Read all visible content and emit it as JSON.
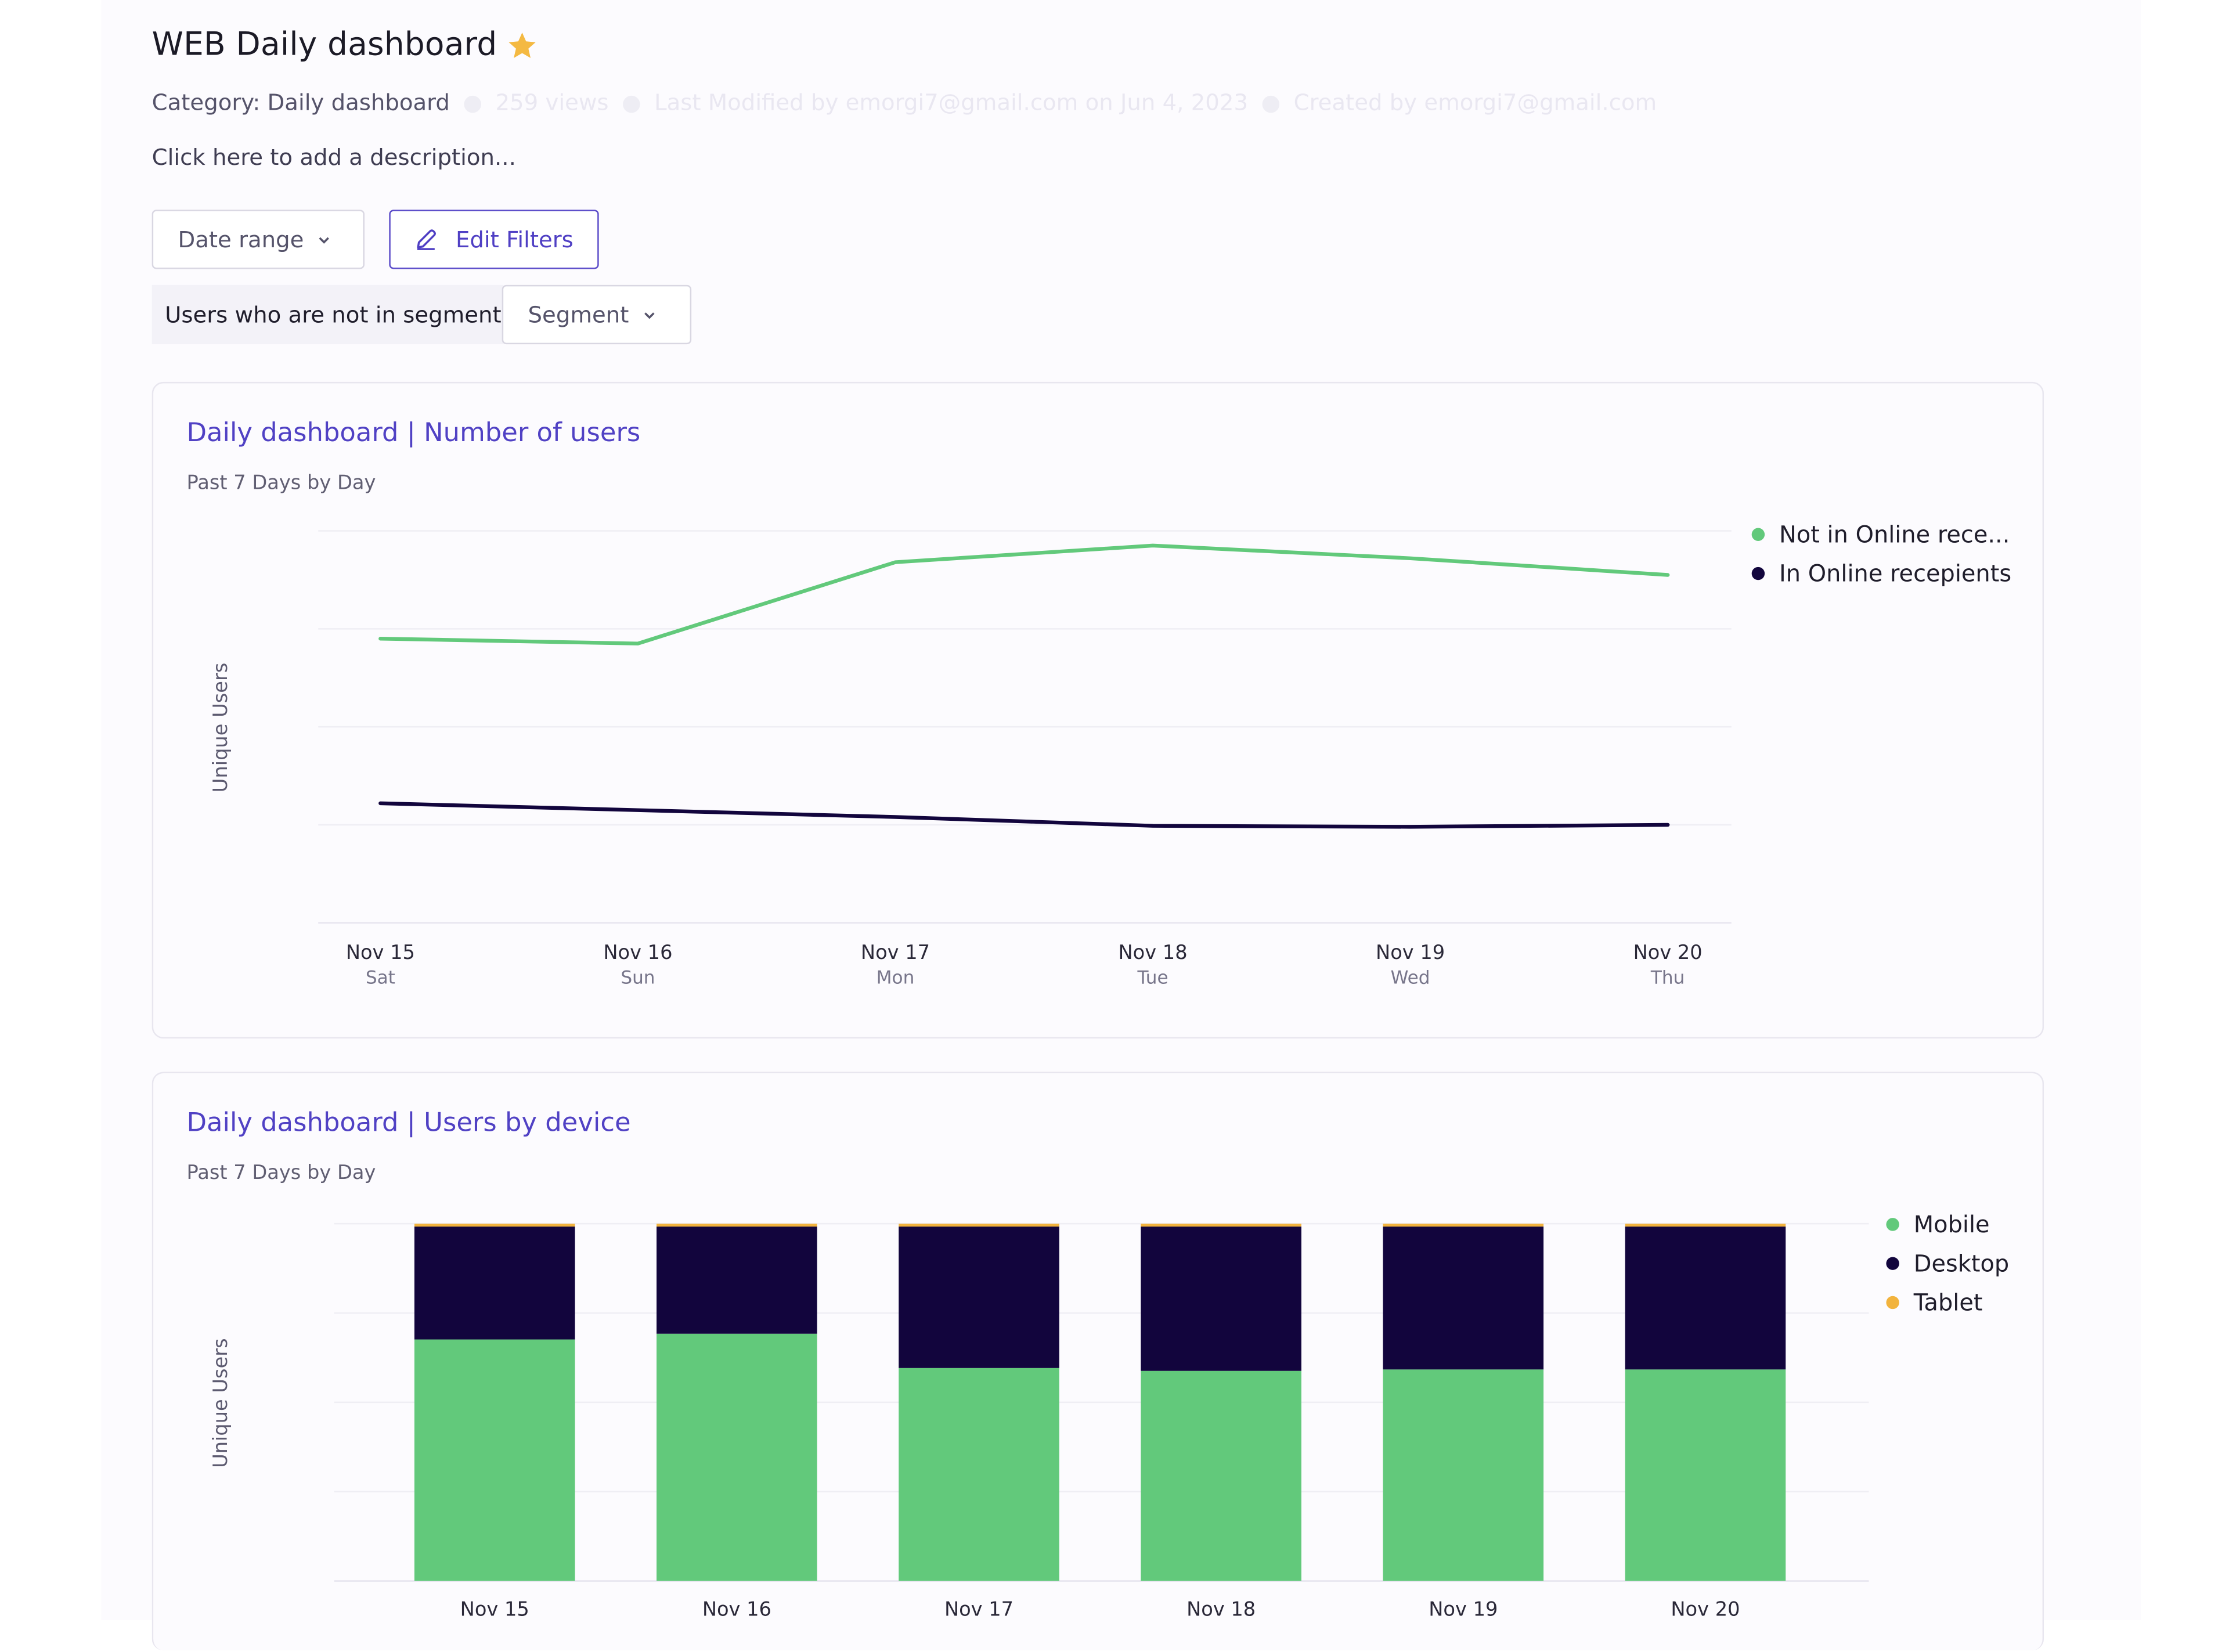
{
  "header": {
    "title": "WEB Daily dashboard",
    "category": "Category: Daily dashboard",
    "views": "259 views",
    "last_modified": "Last Modified by emorgi7@gmail.com on Jun 4, 2023",
    "created_by": "Created by emorgi7@gmail.com",
    "description_placeholder": "Click here to add a description..."
  },
  "toolbar": {
    "date_range_label": "Date range",
    "edit_filters_label": "Edit Filters",
    "segment_prefix": "Users who are not in segment",
    "segment_label": "Segment"
  },
  "colors": {
    "green": "#62c97b",
    "navy": "#12053d",
    "orange": "#f2b33d",
    "accent": "#5041c4",
    "star": "#f4b942"
  },
  "icons": {
    "favorite": "star-icon",
    "edit": "pencil-icon",
    "dropdown": "chevron-down-icon"
  },
  "charts": [
    {
      "title": "Daily dashboard | Number of users",
      "subtitle": "Past 7 Days by Day",
      "ylabel": "Unique Users"
    },
    {
      "title": "Daily dashboard | Users by device",
      "subtitle": "Past 7 Days by Day",
      "ylabel": "Unique Users"
    }
  ],
  "chart_data": [
    {
      "type": "line",
      "title": "Daily dashboard | Number of users",
      "subtitle": "Past 7 Days by Day",
      "xlabel": "",
      "ylabel": "Unique Users",
      "categories": [
        "Nov 15",
        "Nov 16",
        "Nov 17",
        "Nov 18",
        "Nov 19",
        "Nov 20"
      ],
      "sublabels": [
        "Sat",
        "Sun",
        "Mon",
        "Tue",
        "Wed",
        "Thu"
      ],
      "ylim": [
        0,
        4
      ],
      "grid": true,
      "legend_position": "right",
      "series": [
        {
          "name": "Not in Online rece...",
          "color": "#62c97b",
          "values": [
            2.9,
            2.85,
            3.68,
            3.85,
            3.72,
            3.55
          ]
        },
        {
          "name": "In Online recepients",
          "color": "#12053d",
          "values": [
            1.22,
            1.15,
            1.08,
            0.99,
            0.98,
            1.0
          ]
        }
      ]
    },
    {
      "type": "bar",
      "stacked": true,
      "title": "Daily dashboard | Users by device",
      "subtitle": "Past 7 Days by Day",
      "xlabel": "",
      "ylabel": "Unique Users",
      "categories": [
        "Nov 15",
        "Nov 16",
        "Nov 17",
        "Nov 18",
        "Nov 19",
        "Nov 20"
      ],
      "ylim": [
        0,
        100
      ],
      "grid": true,
      "legend_position": "right",
      "series": [
        {
          "name": "Mobile",
          "color": "#62c97b",
          "values": [
            67.6,
            69.2,
            59.6,
            58.8,
            59.2,
            59.2
          ]
        },
        {
          "name": "Desktop",
          "color": "#12053d",
          "values": [
            31.6,
            30.0,
            39.6,
            40.4,
            40.0,
            40.0
          ]
        },
        {
          "name": "Tablet",
          "color": "#f2b33d",
          "values": [
            0.8,
            0.8,
            0.8,
            0.8,
            0.8,
            0.8
          ]
        }
      ]
    }
  ]
}
